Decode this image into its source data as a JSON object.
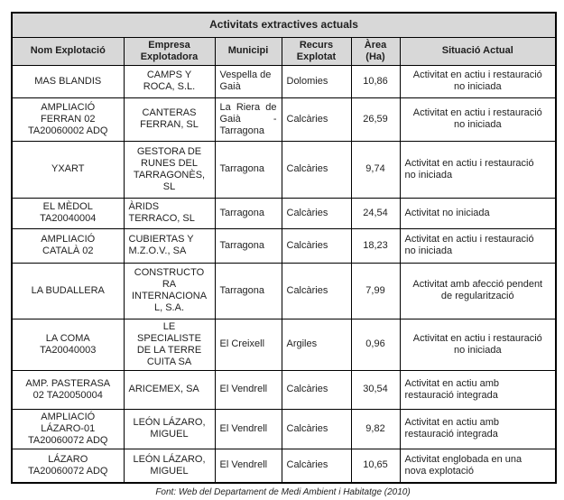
{
  "title": "Activitats extractives actuals",
  "columns": [
    "Nom Explotació",
    "Empresa\nExplotadora",
    "Municipi",
    "Recurs\nExplotat",
    "Àrea\n(Ha)",
    "Situació Actual"
  ],
  "rows": [
    {
      "nom": "MAS BLANDIS",
      "empresa": "CAMPS Y\nROCA, S.L.",
      "municipi": "Vespella de\nGaià",
      "recurs": "Dolomies",
      "area": "10,86",
      "situacio": "Activitat en actiu i restauració\nno iniciada",
      "aligns": {}
    },
    {
      "nom": "AMPLIACIÓ\nFERRAN 02\nTA20060002 ADQ",
      "empresa": "CANTERAS\nFERRAN, SL",
      "municipi": "La Riera de Gaià - Tarragona",
      "recurs": "Calcàries",
      "area": "26,59",
      "situacio": "Activitat en actiu i restauració\nno iniciada",
      "aligns": {
        "municipi": "justify"
      }
    },
    {
      "nom": "YXART",
      "empresa": "GESTORA DE\nRUNES DEL\nTARRAGONÈS,\nSL",
      "municipi": "Tarragona",
      "recurs": "Calcàries",
      "area": "9,74",
      "situacio": "Activitat en actiu i restauració\nno iniciada",
      "aligns": {
        "situacio": "left"
      }
    },
    {
      "nom": "EL MÈDOL\nTA20040004",
      "empresa": "ÀRIDS\nTERRACO, SL",
      "municipi": "Tarragona",
      "recurs": "Calcàries",
      "area": "24,54",
      "situacio": "Activitat no iniciada",
      "aligns": {
        "empresa": "left",
        "situacio": "left"
      }
    },
    {
      "nom": "AMPLIACIÓ\nCATALÀ 02",
      "empresa": "CUBIERTAS Y\nM.Z.O.V., SA",
      "municipi": "Tarragona",
      "recurs": "Calcàries",
      "area": "18,23",
      "situacio": "Activitat en actiu i restauració\nno iniciada",
      "aligns": {
        "empresa": "left",
        "situacio": "left"
      }
    },
    {
      "nom": "LA BUDALLERA",
      "empresa": "CONSTRUCTO\nRA\nINTERNACIONA\nL, S.A.",
      "municipi": "Tarragona",
      "recurs": "Calcàries",
      "area": "7,99",
      "situacio": "Activitat amb afecció pendent\nde regularització",
      "aligns": {}
    },
    {
      "nom": "LA COMA\nTA20040003",
      "empresa": "LE\nSPECIALISTE\nDE LA TERRE\nCUITA SA",
      "municipi": "El Creixell",
      "recurs": "Argiles",
      "area": "0,96",
      "situacio": "Activitat en actiu i restauració\nno iniciada",
      "aligns": {}
    },
    {
      "nom": "AMP. PASTERASA\n02 TA20050004",
      "empresa": "ARICEMEX, SA",
      "municipi": "El Vendrell",
      "recurs": "Calcàries",
      "area": "30,54",
      "situacio": "Activitat en actiu amb\nrestauració integrada",
      "aligns": {
        "empresa": "left",
        "situacio": "left"
      }
    },
    {
      "nom": "AMPLIACIÓ\nLÁZARO-01\nTA20060072 ADQ",
      "empresa": "LEÓN LÁZARO,\nMIGUEL",
      "municipi": "El Vendrell",
      "recurs": "Calcàries",
      "area": "9,82",
      "situacio": "Activitat en actiu amb\nrestauració integrada",
      "aligns": {
        "situacio": "left"
      }
    },
    {
      "nom": "LÁZARO\nTA20060072 ADQ",
      "empresa": "LEÓN LÁZARO,\nMIGUEL",
      "municipi": "El Vendrell",
      "recurs": "Calcàries",
      "area": "10,65",
      "situacio": "Activitat englobada en una\nnova explotació",
      "aligns": {
        "situacio": "left"
      }
    }
  ],
  "footer": "Font: Web del Departament de Medi Ambient i Habitatge (2010)",
  "colors": {
    "header_bg": "#d8d8d8",
    "border": "#000000"
  }
}
